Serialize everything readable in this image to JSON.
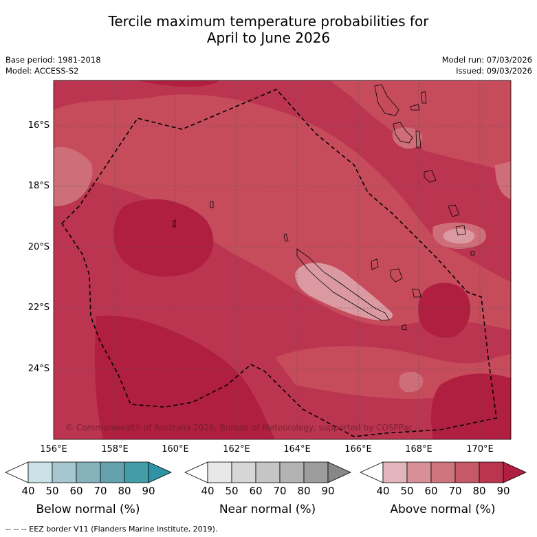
{
  "title": {
    "line1": "Tercile maximum temperature probabilities for",
    "line2": "April to June 2026"
  },
  "meta": {
    "base_period": "Base period: 1981-2018",
    "model": "Model: ACCESS-S2",
    "model_run": "Model run: 07/03/2026",
    "issued": "Issued: 09/03/2026"
  },
  "map": {
    "lat_labels": [
      "16°S",
      "18°S",
      "20°S",
      "22°S",
      "24°S"
    ],
    "lon_labels": [
      "156°E",
      "158°E",
      "160°E",
      "162°E",
      "164°E",
      "166°E",
      "168°E",
      "170°E"
    ],
    "copyright": "© Commonwealth of Australia 2026, Bureau of Meteorology, supported by COSPPac",
    "colors": {
      "above_80_90": "#bc3550",
      "above_90": "#b01e40",
      "above_70_80": "#c64c5c",
      "above_60_70": "#cd6e78",
      "above_50_60": "#db9aa2"
    }
  },
  "colorbars": [
    {
      "title": "Below normal (%)",
      "ticks": [
        "40",
        "50",
        "60",
        "70",
        "80",
        "90"
      ],
      "colors": [
        "#ffffff",
        "#cae2e7",
        "#a6c7cd",
        "#86b2bc",
        "#65a1ae",
        "#429da9",
        "#2f93a6"
      ]
    },
    {
      "title": "Near normal (%)",
      "ticks": [
        "40",
        "50",
        "60",
        "70",
        "80",
        "90"
      ],
      "colors": [
        "#ffffff",
        "#e7e7e7",
        "#d6d6d6",
        "#c5c5c5",
        "#b3b3b3",
        "#9d9d9d",
        "#878787"
      ]
    },
    {
      "title": "Above normal (%)",
      "ticks": [
        "40",
        "50",
        "60",
        "70",
        "80",
        "90"
      ],
      "colors": [
        "#ffffff",
        "#e2b5bc",
        "#d88f98",
        "#cd747c",
        "#c55a66",
        "#bc3550",
        "#b01e40"
      ]
    }
  ],
  "footer": "--  --  -- EEZ border V11 (Flanders Marine Institute, 2019)."
}
